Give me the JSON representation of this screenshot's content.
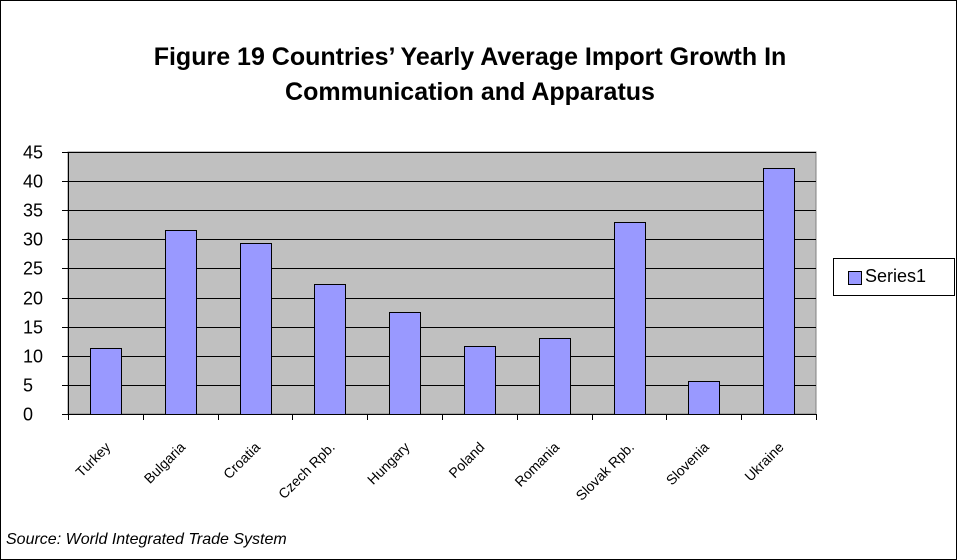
{
  "chart_data": {
    "type": "bar",
    "title_line1": "Figure 19 Countries’ Yearly Average Import Growth In",
    "title_line2": "Communication and Apparatus",
    "categories": [
      "Turkey",
      "Bulgaria",
      "Croatia",
      "Czech Rpb.",
      "Hungary",
      "Poland",
      "Romania",
      "Slovak Rpb.",
      "Slovenia",
      "Ukraine"
    ],
    "series": [
      {
        "name": "Series1",
        "values": [
          11.3,
          31.6,
          29.3,
          22.3,
          17.6,
          11.7,
          13.0,
          33.0,
          5.7,
          42.3
        ]
      }
    ],
    "ylim": [
      0,
      45
    ],
    "yticks": [
      0,
      5,
      10,
      15,
      20,
      25,
      30,
      35,
      40,
      45
    ],
    "grid": true,
    "legend_position": "right",
    "colors": {
      "bar": "#9999ff",
      "plot_background": "#c0c0c0",
      "gridline": "#000000"
    }
  },
  "source_note": "Source: World Integrated Trade System"
}
